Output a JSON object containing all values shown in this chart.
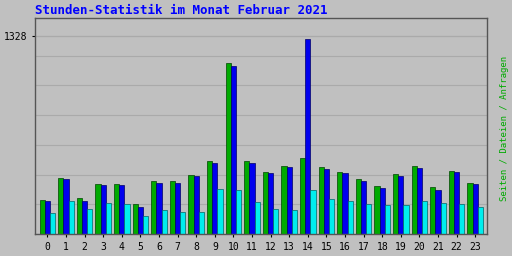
{
  "title": "Stunden-Statistik im Monat Februar 2021",
  "hours": [
    0,
    1,
    2,
    3,
    4,
    5,
    6,
    7,
    8,
    9,
    10,
    11,
    12,
    13,
    14,
    15,
    16,
    17,
    18,
    19,
    20,
    21,
    22,
    23
  ],
  "seiten": [
    230,
    380,
    240,
    340,
    340,
    200,
    355,
    355,
    400,
    490,
    1150,
    490,
    420,
    460,
    510,
    450,
    420,
    370,
    325,
    405,
    460,
    315,
    425,
    345
  ],
  "dateien": [
    220,
    370,
    225,
    330,
    330,
    185,
    345,
    345,
    390,
    475,
    1130,
    475,
    410,
    450,
    1310,
    440,
    410,
    355,
    310,
    390,
    445,
    300,
    415,
    335
  ],
  "anfragen": [
    140,
    220,
    170,
    210,
    200,
    120,
    165,
    150,
    150,
    305,
    295,
    215,
    170,
    160,
    295,
    235,
    220,
    200,
    195,
    195,
    225,
    210,
    205,
    185
  ],
  "color_seiten": "#00AA00",
  "color_dateien": "#0000EE",
  "color_anfragen": "#00EEEE",
  "bg_color": "#C0C0C0",
  "plot_bg": "#C0C0C0",
  "grid_color": "#AAAAAA",
  "ylim": [
    0,
    1450
  ],
  "ytick_val": 1328,
  "title_color": "#0000FF",
  "right_label_seiten": "Seiten",
  "right_label_slash1": " / ",
  "right_label_dateien": "Dateien",
  "right_label_slash2": " / ",
  "right_label_anfragen": "Anfragen",
  "bar_width": 0.28
}
